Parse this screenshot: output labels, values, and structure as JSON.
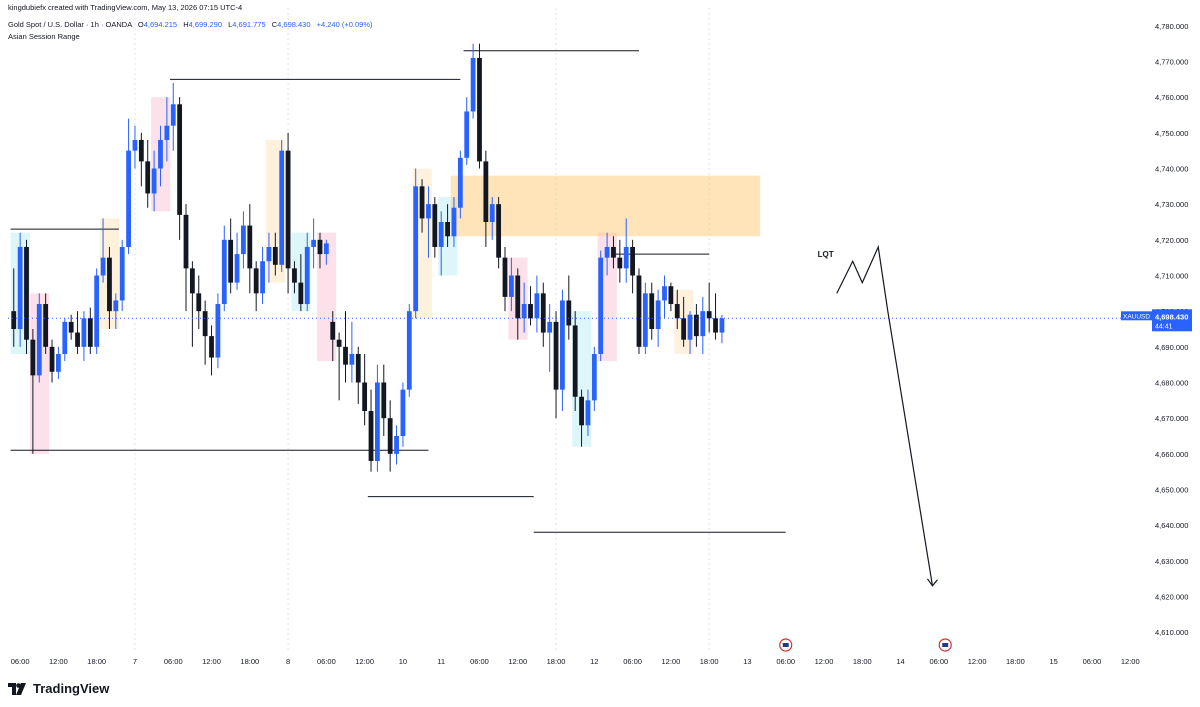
{
  "header": {
    "creator": "kingdubiefx created with TradingView.com, May 13, 2026 07:15 UTC-4",
    "symbol": "Gold Spot / U.S. Dollar · 1h · OANDA",
    "open_label": "O",
    "open": "4,694.215",
    "high_label": "H",
    "high": "4,699.290",
    "low_label": "L",
    "low": "4,691.775",
    "close_label": "C",
    "close": "4,698.430",
    "change": "+4.240 (+0.09%)",
    "indicator": "Asian Session Range"
  },
  "price_badge": {
    "ticker": "XAUUSD",
    "price": "4,698.430",
    "countdown": "44:41"
  },
  "annotation_label": "LQT",
  "brand": "TradingView",
  "colors": {
    "up": "#2962ff",
    "down": "#131722",
    "supply_zone": "#ffcc80",
    "session_peach": "#ffe0b2",
    "session_pink": "#f8bbd0",
    "session_cyan": "#b2ebf2",
    "badge": "#2962ff",
    "grid": "#e0e3eb"
  },
  "chart_data": {
    "type": "candlestick",
    "title": "Gold Spot / U.S. Dollar · 1h · OANDA",
    "ylim": [
      4605,
      4785
    ],
    "y_ticks": [
      4610,
      4620,
      4630,
      4640,
      4650,
      4660,
      4670,
      4680,
      4690,
      4700,
      4710,
      4720,
      4730,
      4740,
      4750,
      4760,
      4770,
      4780
    ],
    "y_tick_labels": [
      "4,610.000",
      "4,620.000",
      "4,630.000",
      "4,640.000",
      "4,650.000",
      "4,660.000",
      "4,670.000",
      "4,680.000",
      "4,690.000",
      "4,700.000",
      "4,710.000",
      "4,720.000",
      "4,730.000",
      "4,740.000",
      "4,750.000",
      "4,760.000",
      "4,770.000",
      "4,780.000"
    ],
    "x_start_index": -0.9,
    "x_end_index": 146,
    "x_ticks": [
      {
        "i": 1,
        "label": "06:00"
      },
      {
        "i": 7,
        "label": "12:00"
      },
      {
        "i": 13,
        "label": "18:00"
      },
      {
        "i": 19,
        "label": "7"
      },
      {
        "i": 25,
        "label": "06:00"
      },
      {
        "i": 31,
        "label": "12:00"
      },
      {
        "i": 37,
        "label": "18:00"
      },
      {
        "i": 43,
        "label": "8"
      },
      {
        "i": 49,
        "label": "06:00"
      },
      {
        "i": 55,
        "label": "12:00"
      },
      {
        "i": 61,
        "label": "10"
      },
      {
        "i": 67,
        "label": "11"
      },
      {
        "i": 73,
        "label": "06:00"
      },
      {
        "i": 79,
        "label": "12:00"
      },
      {
        "i": 85,
        "label": "18:00"
      },
      {
        "i": 91,
        "label": "12"
      },
      {
        "i": 97,
        "label": "06:00"
      },
      {
        "i": 103,
        "label": "12:00"
      },
      {
        "i": 109,
        "label": "18:00"
      },
      {
        "i": 115,
        "label": "13"
      },
      {
        "i": 121,
        "label": "06:00"
      },
      {
        "i": 127,
        "label": "12:00"
      },
      {
        "i": 133,
        "label": "18:00"
      },
      {
        "i": 139,
        "label": "14"
      },
      {
        "i": 145,
        "label": "06:00"
      },
      {
        "i": 151,
        "label": "12:00"
      },
      {
        "i": 157,
        "label": "18:00"
      },
      {
        "i": 163,
        "label": "15"
      },
      {
        "i": 169,
        "label": "06:00"
      },
      {
        "i": 175,
        "label": "12:00"
      }
    ],
    "day_separators": [
      19,
      43,
      85,
      109
    ],
    "candles": [
      [
        4700,
        4712,
        4690,
        4695
      ],
      [
        4695,
        4722,
        4690,
        4718
      ],
      [
        4718,
        4720,
        4688,
        4692
      ],
      [
        4692,
        4695,
        4660,
        4682
      ],
      [
        4682,
        4705,
        4680,
        4702
      ],
      [
        4702,
        4705,
        4688,
        4690
      ],
      [
        4690,
        4692,
        4680,
        4683
      ],
      [
        4683,
        4690,
        4681,
        4688
      ],
      [
        4688,
        4698,
        4686,
        4697
      ],
      [
        4697,
        4699,
        4692,
        4694
      ],
      [
        4694,
        4700,
        4688,
        4690
      ],
      [
        4690,
        4700,
        4686,
        4698
      ],
      [
        4698,
        4701,
        4688,
        4690
      ],
      [
        4690,
        4712,
        4688,
        4710
      ],
      [
        4710,
        4726,
        4708,
        4715
      ],
      [
        4715,
        4718,
        4695,
        4700
      ],
      [
        4700,
        4705,
        4695,
        4703
      ],
      [
        4703,
        4720,
        4700,
        4718
      ],
      [
        4718,
        4754,
        4716,
        4745
      ],
      [
        4745,
        4752,
        4740,
        4748
      ],
      [
        4748,
        4750,
        4735,
        4742
      ],
      [
        4742,
        4748,
        4729,
        4733
      ],
      [
        4733,
        4745,
        4728,
        4740
      ],
      [
        4740,
        4752,
        4735,
        4748
      ],
      [
        4748,
        4760,
        4742,
        4752
      ],
      [
        4752,
        4764,
        4745,
        4758
      ],
      [
        4758,
        4760,
        4720,
        4727
      ],
      [
        4727,
        4730,
        4700,
        4712
      ],
      [
        4712,
        4714,
        4690,
        4705
      ],
      [
        4705,
        4710,
        4695,
        4700
      ],
      [
        4700,
        4703,
        4685,
        4693
      ],
      [
        4693,
        4696,
        4682,
        4687
      ],
      [
        4687,
        4705,
        4684,
        4702
      ],
      [
        4702,
        4724,
        4700,
        4720
      ],
      [
        4720,
        4726,
        4705,
        4708
      ],
      [
        4708,
        4722,
        4706,
        4716
      ],
      [
        4716,
        4728,
        4712,
        4724
      ],
      [
        4724,
        4730,
        4705,
        4712
      ],
      [
        4712,
        4714,
        4700,
        4705
      ],
      [
        4705,
        4718,
        4702,
        4714
      ],
      [
        4714,
        4722,
        4708,
        4718
      ],
      [
        4718,
        4722,
        4710,
        4713
      ],
      [
        4713,
        4748,
        4711,
        4745
      ],
      [
        4745,
        4750,
        4705,
        4712
      ],
      [
        4712,
        4714,
        4705,
        4708
      ],
      [
        4708,
        4716,
        4700,
        4702
      ],
      [
        4702,
        4722,
        4700,
        4718
      ],
      [
        4718,
        4726,
        4712,
        4720
      ],
      [
        4720,
        4722,
        4712,
        4716
      ],
      [
        4716,
        4720,
        4713,
        4719
      ],
      [
        4697,
        4700,
        4686,
        4692
      ],
      [
        4692,
        4694,
        4675,
        4690
      ],
      [
        4690,
        4700,
        4680,
        4685
      ],
      [
        4685,
        4697,
        4680,
        4688
      ],
      [
        4688,
        4690,
        4674,
        4680
      ],
      [
        4680,
        4688,
        4668,
        4672
      ],
      [
        4672,
        4678,
        4655,
        4658
      ],
      [
        4658,
        4685,
        4655,
        4680
      ],
      [
        4680,
        4685,
        4665,
        4670
      ],
      [
        4670,
        4675,
        4655,
        4660
      ],
      [
        4660,
        4668,
        4657,
        4665
      ],
      [
        4665,
        4680,
        4662,
        4678
      ],
      [
        4678,
        4702,
        4676,
        4700
      ],
      [
        4700,
        4740,
        4698,
        4735
      ],
      [
        4735,
        4737,
        4722,
        4726
      ],
      [
        4726,
        4735,
        4715,
        4730
      ],
      [
        4730,
        4732,
        4715,
        4718
      ],
      [
        4718,
        4728,
        4710,
        4725
      ],
      [
        4725,
        4730,
        4718,
        4721
      ],
      [
        4721,
        4732,
        4718,
        4729
      ],
      [
        4729,
        4745,
        4726,
        4743
      ],
      [
        4743,
        4760,
        4741,
        4756
      ],
      [
        4756,
        4775,
        4754,
        4771
      ],
      [
        4771,
        4775,
        4740,
        4742
      ],
      [
        4742,
        4745,
        4718,
        4725
      ],
      [
        4725,
        4732,
        4720,
        4730
      ],
      [
        4730,
        4732,
        4712,
        4715
      ],
      [
        4715,
        4718,
        4700,
        4704
      ],
      [
        4704,
        4715,
        4700,
        4710
      ],
      [
        4710,
        4712,
        4692,
        4698
      ],
      [
        4698,
        4708,
        4694,
        4702
      ],
      [
        4702,
        4707,
        4696,
        4698
      ],
      [
        4698,
        4710,
        4694,
        4705
      ],
      [
        4705,
        4708,
        4690,
        4694
      ],
      [
        4694,
        4702,
        4683,
        4697
      ],
      [
        4697,
        4700,
        4670,
        4678
      ],
      [
        4678,
        4706,
        4672,
        4703
      ],
      [
        4703,
        4710,
        4692,
        4696
      ],
      [
        4696,
        4700,
        4672,
        4676
      ],
      [
        4676,
        4678,
        4662,
        4668
      ],
      [
        4668,
        4678,
        4665,
        4675
      ],
      [
        4675,
        4690,
        4672,
        4688
      ],
      [
        4688,
        4717,
        4686,
        4715
      ],
      [
        4715,
        4722,
        4710,
        4718
      ],
      [
        4718,
        4721,
        4712,
        4715
      ],
      [
        4715,
        4720,
        4708,
        4712
      ],
      [
        4712,
        4726,
        4708,
        4718
      ],
      [
        4718,
        4720,
        4705,
        4710
      ],
      [
        4710,
        4712,
        4688,
        4690
      ],
      [
        4690,
        4708,
        4688,
        4705
      ],
      [
        4705,
        4708,
        4692,
        4695
      ],
      [
        4695,
        4706,
        4690,
        4703
      ],
      [
        4703,
        4710,
        4698,
        4707
      ],
      [
        4707,
        4708,
        4700,
        4702
      ],
      [
        4702,
        4706,
        4695,
        4698
      ],
      [
        4698,
        4704,
        4690,
        4692
      ],
      [
        4692,
        4700,
        4688,
        4699
      ],
      [
        4699,
        4702,
        4690,
        4693
      ],
      [
        4693,
        4704,
        4688,
        4700
      ],
      [
        4700,
        4708,
        4694,
        4698
      ],
      [
        4698,
        4705,
        4692,
        4694
      ],
      [
        4694,
        4699,
        4691,
        4698
      ]
    ],
    "candle_index_map_note": "candles listed left to right, one per hour",
    "levels": [
      {
        "price": 4723,
        "from": -0.5,
        "to": 16.5
      },
      {
        "price": 4661,
        "from": -0.5,
        "to": 65
      },
      {
        "price": 4765,
        "from": 24.5,
        "to": 70
      },
      {
        "price": 4773,
        "from": 70.5,
        "to": 98
      },
      {
        "price": 4648,
        "from": 55.5,
        "to": 81.5
      },
      {
        "price": 4638,
        "from": 81.5,
        "to": 121
      },
      {
        "price": 4716,
        "from": 94,
        "to": 109
      }
    ],
    "zone": {
      "from": 68.5,
      "to": 117,
      "top": 4738,
      "bottom": 4721
    }
  }
}
